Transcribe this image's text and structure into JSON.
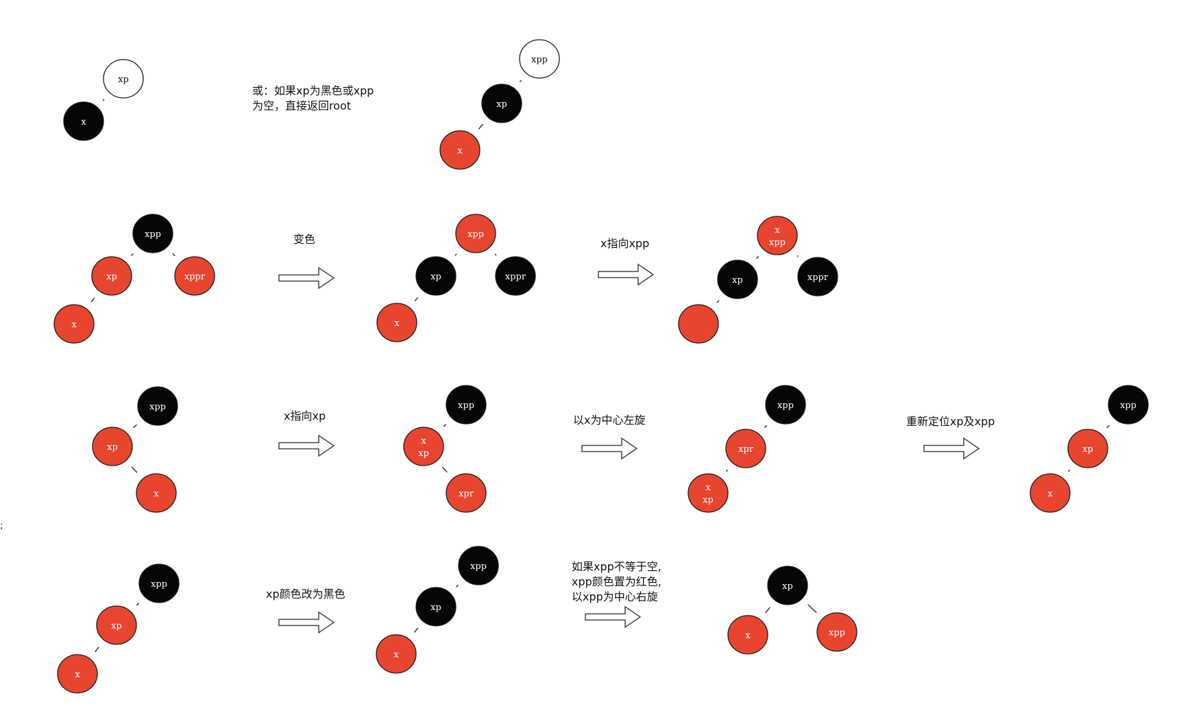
{
  "colors": {
    "red": "#e8452f",
    "black": "#060606",
    "white": "#ffffff",
    "edge": "#2b2b2b",
    "arrow_stroke": "#444444",
    "node_text_light": "#ffffff",
    "node_text_dark": "#111111"
  },
  "stray_mark": ";",
  "captions": {
    "row1": [
      "或：如果xp为黑色或xpp",
      "为空，直接返回root"
    ],
    "row2_a": "变色",
    "row2_b": "x指向xpp",
    "row3_a": "x指向xp",
    "row3_b": "以x为中心左旋",
    "row3_c": "重新定位xp及xpp",
    "row4_a": "xp颜色改为黑色",
    "row4_b": [
      "如果xpp不等于空,",
      "xpp颜色置为红色,",
      "以xpp为中心右旋"
    ]
  },
  "trees": [
    {
      "id": "r1-before",
      "nodes": [
        {
          "id": "xp",
          "label": "xp",
          "color": "white"
        },
        {
          "id": "x",
          "label": "x",
          "color": "black"
        }
      ],
      "edges": [
        [
          "xp",
          "x"
        ]
      ]
    },
    {
      "id": "r1-after",
      "nodes": [
        {
          "id": "xpp",
          "label": "xpp",
          "color": "white"
        },
        {
          "id": "xp",
          "label": "xp",
          "color": "black"
        },
        {
          "id": "x",
          "label": "x",
          "color": "red"
        }
      ],
      "edges": [
        [
          "xpp",
          "xp"
        ],
        [
          "xp",
          "x"
        ]
      ]
    },
    {
      "id": "r2-initial",
      "nodes": [
        {
          "id": "xpp",
          "label": "xpp",
          "color": "black"
        },
        {
          "id": "xp",
          "label": "xp",
          "color": "red"
        },
        {
          "id": "xppr",
          "label": "xppr",
          "color": "red"
        },
        {
          "id": "x",
          "label": "x",
          "color": "red"
        }
      ],
      "edges": [
        [
          "xpp",
          "xp"
        ],
        [
          "xpp",
          "xppr"
        ],
        [
          "xp",
          "x"
        ]
      ]
    },
    {
      "id": "r2-recolored",
      "nodes": [
        {
          "id": "xpp",
          "label": "xpp",
          "color": "red"
        },
        {
          "id": "xp",
          "label": "xp",
          "color": "black"
        },
        {
          "id": "xppr",
          "label": "xppr",
          "color": "black"
        },
        {
          "id": "x",
          "label": "x",
          "color": "red"
        }
      ],
      "edges": [
        [
          "xpp",
          "xp"
        ],
        [
          "xpp",
          "xppr"
        ],
        [
          "xp",
          "x"
        ]
      ]
    },
    {
      "id": "r2-moved",
      "nodes": [
        {
          "id": "xpp",
          "label": "x\nxpp",
          "color": "red"
        },
        {
          "id": "xp",
          "label": "xp",
          "color": "black"
        },
        {
          "id": "xppr",
          "label": "xppr",
          "color": "black"
        },
        {
          "id": "x",
          "label": "",
          "color": "red"
        }
      ],
      "edges": [
        [
          "xpp",
          "xp"
        ],
        [
          "xpp",
          "xppr"
        ],
        [
          "xp",
          "x"
        ]
      ]
    },
    {
      "id": "r3-initial",
      "nodes": [
        {
          "id": "xpp",
          "label": "xpp",
          "color": "black"
        },
        {
          "id": "xp",
          "label": "xp",
          "color": "red"
        },
        {
          "id": "x",
          "label": "x",
          "color": "red"
        }
      ],
      "edges": [
        [
          "xpp",
          "xp"
        ],
        [
          "xp",
          "x"
        ]
      ]
    },
    {
      "id": "r3-moved",
      "nodes": [
        {
          "id": "xpp",
          "label": "xpp",
          "color": "black"
        },
        {
          "id": "xp",
          "label": "x\nxp",
          "color": "red"
        },
        {
          "id": "xpr",
          "label": "xpr",
          "color": "red"
        }
      ],
      "edges": [
        [
          "xpp",
          "xp"
        ],
        [
          "xp",
          "xpr"
        ]
      ]
    },
    {
      "id": "r3-rotated",
      "nodes": [
        {
          "id": "xpp",
          "label": "xpp",
          "color": "black"
        },
        {
          "id": "xpr",
          "label": "xpr",
          "color": "red"
        },
        {
          "id": "x",
          "label": "x\nxp",
          "color": "red"
        }
      ],
      "edges": [
        [
          "xpp",
          "xpr"
        ],
        [
          "xpr",
          "x"
        ]
      ]
    },
    {
      "id": "r3-relocated",
      "nodes": [
        {
          "id": "xpp",
          "label": "xpp",
          "color": "black"
        },
        {
          "id": "xp",
          "label": "xp",
          "color": "red"
        },
        {
          "id": "x",
          "label": "x",
          "color": "red"
        }
      ],
      "edges": [
        [
          "xpp",
          "xp"
        ],
        [
          "xp",
          "x"
        ]
      ]
    },
    {
      "id": "r4-initial",
      "nodes": [
        {
          "id": "xpp",
          "label": "xpp",
          "color": "black"
        },
        {
          "id": "xp",
          "label": "xp",
          "color": "red"
        },
        {
          "id": "x",
          "label": "x",
          "color": "red"
        }
      ],
      "edges": [
        [
          "xpp",
          "xp"
        ],
        [
          "xp",
          "x"
        ]
      ]
    },
    {
      "id": "r4-recolored",
      "nodes": [
        {
          "id": "xpp",
          "label": "xpp",
          "color": "black"
        },
        {
          "id": "xp",
          "label": "xp",
          "color": "black"
        },
        {
          "id": "x",
          "label": "x",
          "color": "red"
        }
      ],
      "edges": [
        [
          "xpp",
          "xp"
        ],
        [
          "xp",
          "x"
        ]
      ]
    },
    {
      "id": "r4-rotated",
      "nodes": [
        {
          "id": "xp",
          "label": "xp",
          "color": "black"
        },
        {
          "id": "x",
          "label": "x",
          "color": "red"
        },
        {
          "id": "xpp",
          "label": "xpp",
          "color": "red"
        }
      ],
      "edges": [
        [
          "xp",
          "x"
        ],
        [
          "xp",
          "xpp"
        ]
      ]
    }
  ]
}
